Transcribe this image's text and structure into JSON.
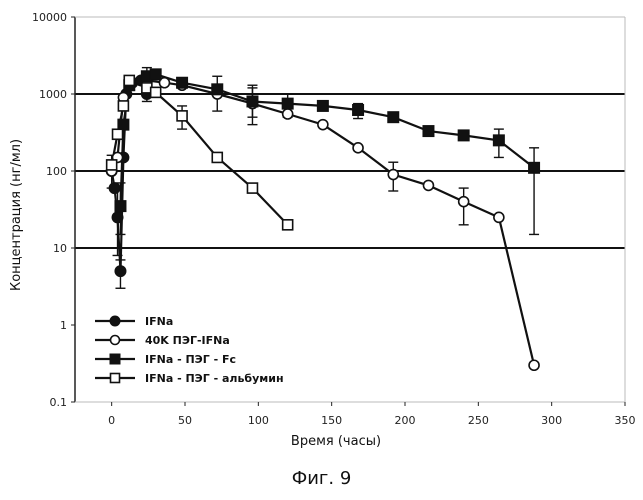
{
  "chart_data": {
    "type": "line",
    "xlabel": "Время (часы)",
    "ylabel": "Концентрация (нг/мл)",
    "x_scale": "linear",
    "y_scale": "log",
    "xlim": [
      -25,
      350
    ],
    "ylim": [
      0.1,
      10000
    ],
    "x_ticks": [
      0,
      50,
      100,
      150,
      200,
      250,
      300,
      350
    ],
    "x_tick_labels": [
      "0",
      "50",
      "100",
      "150",
      "200",
      "250",
      "300",
      "350"
    ],
    "y_ticks": [
      0.1,
      1,
      10,
      100,
      1000,
      10000
    ],
    "y_tick_labels": [
      "0.1",
      "1",
      "10",
      "100",
      "1000",
      "10000"
    ],
    "horizontal_gridlines": [
      10,
      100,
      1000
    ],
    "legend_position": "bottom-left",
    "series": [
      {
        "name": "IFNa",
        "marker": "filled-circle",
        "points": [
          [
            0,
            100
          ],
          [
            2,
            60
          ],
          [
            4,
            25
          ],
          [
            6,
            5
          ],
          [
            8,
            150
          ],
          [
            10,
            1000
          ],
          [
            14,
            1400
          ],
          [
            20,
            1500
          ],
          [
            24,
            1000
          ]
        ],
        "errors": [
          [
            0,
            60,
            160
          ],
          [
            4,
            8,
            60
          ],
          [
            6,
            3,
            7
          ]
        ]
      },
      {
        "name": "40K ПЭГ-IFNa",
        "marker": "open-circle",
        "points": [
          [
            0,
            100
          ],
          [
            4,
            150
          ],
          [
            8,
            900
          ],
          [
            12,
            1300
          ],
          [
            24,
            1500
          ],
          [
            36,
            1400
          ],
          [
            48,
            1300
          ],
          [
            72,
            1000
          ],
          [
            96,
            750
          ],
          [
            120,
            550
          ],
          [
            144,
            400
          ],
          [
            168,
            200
          ],
          [
            192,
            90
          ],
          [
            216,
            65
          ],
          [
            240,
            40
          ],
          [
            264,
            25
          ],
          [
            288,
            0.3
          ]
        ],
        "errors": [
          [
            72,
            600,
            1700
          ],
          [
            96,
            400,
            1300
          ],
          [
            192,
            55,
            130
          ],
          [
            240,
            20,
            60
          ]
        ]
      },
      {
        "name": "IFNa - ПЭГ - Fc",
        "marker": "filled-square",
        "points": [
          [
            6,
            35
          ],
          [
            8,
            400
          ],
          [
            12,
            1300
          ],
          [
            24,
            1700
          ],
          [
            30,
            1800
          ],
          [
            48,
            1400
          ],
          [
            72,
            1150
          ],
          [
            96,
            800
          ],
          [
            120,
            750
          ],
          [
            144,
            700
          ],
          [
            168,
            620
          ],
          [
            192,
            500
          ],
          [
            216,
            330
          ],
          [
            240,
            290
          ],
          [
            264,
            250
          ],
          [
            288,
            110
          ]
        ],
        "errors": [
          [
            6,
            15,
            70
          ],
          [
            24,
            1300,
            2200
          ],
          [
            96,
            500,
            1200
          ],
          [
            120,
            500,
            1000
          ],
          [
            168,
            480,
            750
          ],
          [
            264,
            150,
            350
          ],
          [
            288,
            15,
            200
          ]
        ]
      },
      {
        "name": "IFNa - ПЭГ - альбумин",
        "marker": "open-square",
        "points": [
          [
            0,
            120
          ],
          [
            4,
            300
          ],
          [
            8,
            700
          ],
          [
            12,
            1500
          ],
          [
            24,
            1200
          ],
          [
            30,
            1050
          ],
          [
            48,
            520
          ],
          [
            72,
            150
          ],
          [
            96,
            60
          ],
          [
            120,
            20
          ]
        ],
        "errors": [
          [
            48,
            350,
            700
          ],
          [
            24,
            800,
            1600
          ]
        ]
      }
    ]
  },
  "figure": {
    "caption": "Фиг. 9"
  }
}
